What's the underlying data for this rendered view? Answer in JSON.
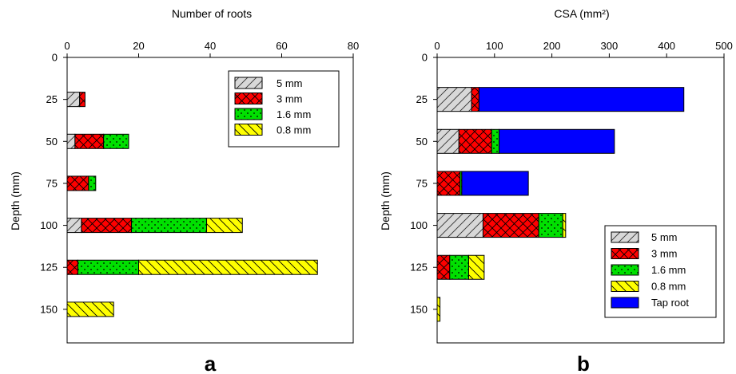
{
  "chart_data": [
    {
      "panel_label": "a",
      "type": "bar",
      "orientation": "horizontal",
      "stacked": true,
      "xlabel": "Number of roots",
      "ylabel": "Depth (mm)",
      "xlim": [
        0,
        80
      ],
      "xticks": [
        "0",
        "20",
        "40",
        "60",
        "80"
      ],
      "ylim": [
        0,
        170
      ],
      "yticks": [
        "0",
        "25",
        "50",
        "75",
        "100",
        "125",
        "150"
      ],
      "x_axis_position": "top",
      "y_inverted": true,
      "legend_position": "top-right",
      "categories": [
        25,
        50,
        75,
        100,
        125,
        150
      ],
      "series": [
        {
          "name": "5 mm",
          "key": "s5",
          "values": [
            3.5,
            2.2,
            0,
            4,
            0,
            0
          ]
        },
        {
          "name": "3 mm",
          "key": "s3",
          "values": [
            1.5,
            8,
            6,
            14,
            3,
            0
          ]
        },
        {
          "name": "1.6 mm",
          "key": "s16",
          "values": [
            0,
            7,
            2,
            21,
            17,
            0
          ]
        },
        {
          "name": "0.8 mm",
          "key": "s08",
          "values": [
            0,
            0,
            0,
            10,
            50,
            13
          ]
        }
      ]
    },
    {
      "panel_label": "b",
      "type": "bar",
      "orientation": "horizontal",
      "stacked": true,
      "xlabel": "CSA (mm²)",
      "ylabel": "Depth (mm)",
      "xlim": [
        0,
        500
      ],
      "xticks": [
        "0",
        "100",
        "200",
        "300",
        "400",
        "500"
      ],
      "ylim": [
        0,
        170
      ],
      "yticks": [
        "0",
        "25",
        "50",
        "75",
        "100",
        "125",
        "150"
      ],
      "x_axis_position": "top",
      "y_inverted": true,
      "legend_position": "bottom-right",
      "categories": [
        25,
        50,
        75,
        100,
        125,
        150
      ],
      "series": [
        {
          "name": "5 mm",
          "key": "s5",
          "values": [
            60,
            38,
            0,
            80,
            0,
            0
          ]
        },
        {
          "name": "3 mm",
          "key": "s3",
          "values": [
            13,
            57,
            40,
            97,
            22,
            0
          ]
        },
        {
          "name": "1.6 mm",
          "key": "s16",
          "values": [
            0,
            13,
            3,
            42,
            33,
            0
          ]
        },
        {
          "name": "0.8 mm",
          "key": "s08",
          "values": [
            0,
            0,
            0,
            5,
            27,
            5
          ]
        },
        {
          "name": "Tap root",
          "key": "tap",
          "values": [
            357,
            201,
            116,
            0,
            0,
            0
          ]
        }
      ]
    }
  ],
  "colors": {
    "s5": "#d8d8d8",
    "s3": "#ff0000",
    "s16": "#00e000",
    "s08": "#ffff00",
    "tap": "#0000ff"
  }
}
